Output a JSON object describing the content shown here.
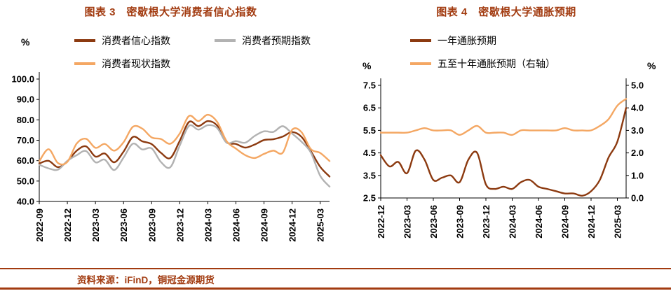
{
  "page": {
    "background": "#ffffff",
    "accent_color": "#A23B10"
  },
  "source": {
    "label": "资料来源：iFinD，铜冠金源期货"
  },
  "chart_data": [
    {
      "type": "line",
      "title": "图表 3　密歇根大学消费者信心指数",
      "unit_left": "%",
      "legend_position": "top",
      "grid": false,
      "ylim_left": [
        40.0,
        100.0
      ],
      "ytick_step": 10,
      "x": [
        "2022-09",
        "2022-10",
        "2022-11",
        "2022-12",
        "2023-01",
        "2023-02",
        "2023-03",
        "2023-04",
        "2023-05",
        "2023-06",
        "2023-07",
        "2023-08",
        "2023-09",
        "2023-10",
        "2023-11",
        "2023-12",
        "2024-01",
        "2024-02",
        "2024-03",
        "2024-04",
        "2024-05",
        "2024-06",
        "2024-07",
        "2024-08",
        "2024-09",
        "2024-10",
        "2024-11",
        "2024-12",
        "2025-01",
        "2025-02",
        "2025-03",
        "2025-04"
      ],
      "x_tick_labels": [
        "2022-09",
        "2022-12",
        "2023-03",
        "2023-06",
        "2023-09",
        "2023-12",
        "2024-03",
        "2024-06",
        "2024-09",
        "2024-12",
        "2025-03"
      ],
      "series": [
        {
          "name": "消费者信心指数",
          "color": "#8C3A10",
          "axis": "left",
          "values": [
            58.6,
            59.9,
            56.8,
            59.7,
            64.9,
            67.0,
            62.0,
            63.5,
            59.2,
            64.4,
            71.6,
            69.5,
            68.1,
            63.8,
            61.3,
            69.7,
            79.0,
            76.9,
            79.4,
            77.2,
            69.1,
            68.2,
            66.4,
            67.9,
            70.1,
            70.5,
            71.8,
            74.0,
            71.7,
            64.7,
            57.0,
            52.2
          ]
        },
        {
          "name": "消费者预期指数",
          "color": "#B2B2B2",
          "axis": "left",
          "values": [
            58.0,
            56.2,
            55.6,
            59.9,
            62.7,
            64.7,
            59.2,
            60.5,
            55.4,
            61.5,
            68.3,
            65.5,
            66.0,
            59.3,
            56.8,
            67.4,
            77.1,
            75.2,
            77.4,
            76.0,
            68.8,
            69.6,
            68.8,
            72.1,
            74.4,
            74.1,
            76.9,
            73.3,
            69.3,
            64.0,
            52.6,
            47.3
          ]
        },
        {
          "name": "消费者现状指数",
          "color": "#F4A763",
          "axis": "left",
          "values": [
            59.7,
            65.6,
            58.8,
            59.4,
            68.4,
            70.7,
            66.3,
            68.2,
            64.9,
            69.0,
            76.6,
            75.7,
            71.4,
            70.6,
            68.3,
            73.3,
            81.9,
            79.4,
            82.5,
            79.0,
            69.6,
            65.9,
            62.7,
            61.3,
            63.3,
            64.9,
            63.9,
            75.1,
            74.0,
            65.7,
            63.8,
            59.8
          ]
        }
      ]
    },
    {
      "type": "line",
      "title": "图表 4　密歇根大学通胀预期",
      "unit_left": "%",
      "unit_right": "%",
      "legend_position": "top",
      "grid": false,
      "ylim_left": [
        2.5,
        7.5
      ],
      "ytick_step": 1,
      "ylim_right": [
        0.0,
        5.0
      ],
      "ytick_step_right": 1,
      "x": [
        "2022-12",
        "2023-01",
        "2023-02",
        "2023-03",
        "2023-04",
        "2023-05",
        "2023-06",
        "2023-07",
        "2023-08",
        "2023-09",
        "2023-10",
        "2023-11",
        "2023-12",
        "2024-01",
        "2024-02",
        "2024-03",
        "2024-04",
        "2024-05",
        "2024-06",
        "2024-07",
        "2024-08",
        "2024-09",
        "2024-10",
        "2024-11",
        "2024-12",
        "2025-01",
        "2025-02",
        "2025-03",
        "2025-04"
      ],
      "x_tick_labels": [
        "2022-12",
        "2023-03",
        "2023-06",
        "2023-09",
        "2023-12",
        "2024-03",
        "2024-06",
        "2024-09",
        "2024-12",
        "2025-03"
      ],
      "series": [
        {
          "name": "一年通胀预期",
          "color": "#8C3A10",
          "axis": "left",
          "values": [
            4.4,
            3.9,
            4.1,
            3.6,
            4.6,
            4.2,
            3.3,
            3.4,
            3.5,
            3.2,
            4.2,
            4.5,
            3.1,
            2.9,
            3.0,
            2.9,
            3.2,
            3.3,
            3.0,
            2.9,
            2.8,
            2.7,
            2.7,
            2.6,
            2.8,
            3.3,
            4.3,
            5.0,
            6.5
          ]
        },
        {
          "name": "五至十年通胀预期（右轴）",
          "color": "#F4A763",
          "axis": "right",
          "values": [
            2.9,
            2.9,
            2.9,
            2.9,
            3.0,
            3.1,
            3.0,
            3.0,
            3.0,
            2.8,
            3.0,
            3.2,
            2.9,
            2.9,
            2.9,
            2.8,
            3.0,
            3.0,
            3.0,
            3.0,
            3.0,
            3.1,
            3.0,
            3.0,
            3.0,
            3.2,
            3.5,
            4.1,
            4.4
          ]
        }
      ]
    }
  ]
}
